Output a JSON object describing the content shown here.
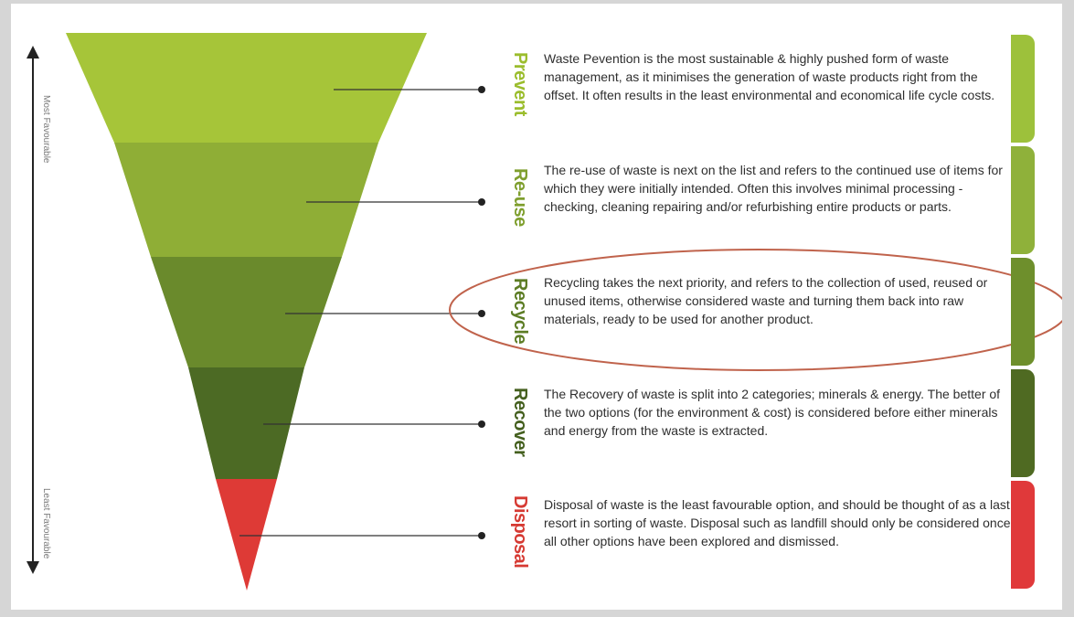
{
  "axis": {
    "top_label": "Most Favourable",
    "bottom_label": "Least Favourable"
  },
  "tiers": [
    {
      "name": "Prevent",
      "color": "#a6c539",
      "label_color": "#9bbd2d",
      "bar_color": "#9dc13b",
      "description": "Waste Pevention is the most sustainable & highly pushed form of waste management, as it minimises the generation of waste products right from the offset. It often results in the least environmental and economical life cycle costs."
    },
    {
      "name": "Re-use",
      "color": "#8fae36",
      "label_color": "#7f9f2e",
      "bar_color": "#8fb13a",
      "description": "The re-use of waste is next on the list and refers to the continued use of items for which they were initially intended. Often this involves minimal processing - checking, cleaning repairing and/or refurbishing entire products or parts."
    },
    {
      "name": "Recycle",
      "color": "#6a8a2c",
      "label_color": "#5d7d25",
      "bar_color": "#6e8f2c",
      "description": "Recycling takes the next priority, and refers to the collection of used, reused or unused items, otherwise considered waste and turning them back into raw materials, ready to be used for another product."
    },
    {
      "name": "Recover",
      "color": "#4c6a24",
      "label_color": "#45601f",
      "bar_color": "#4f6a22",
      "description": "The Recovery of waste is split into 2 categories; minerals & energy. The better of the two options (for the environment & cost) is considered before either minerals and energy from the waste is extracted."
    },
    {
      "name": "Disposal",
      "color": "#de3a36",
      "label_color": "#d63a33",
      "bar_color": "#e0393a",
      "description": "Disposal of waste is the least favourable option, and should be thought of as a last resort in sorting of waste. Disposal such as landfill should only be considered once all other options have been explored and dismissed."
    }
  ],
  "highlight": {
    "target": "Recycle",
    "stroke_color": "#c0634c"
  }
}
